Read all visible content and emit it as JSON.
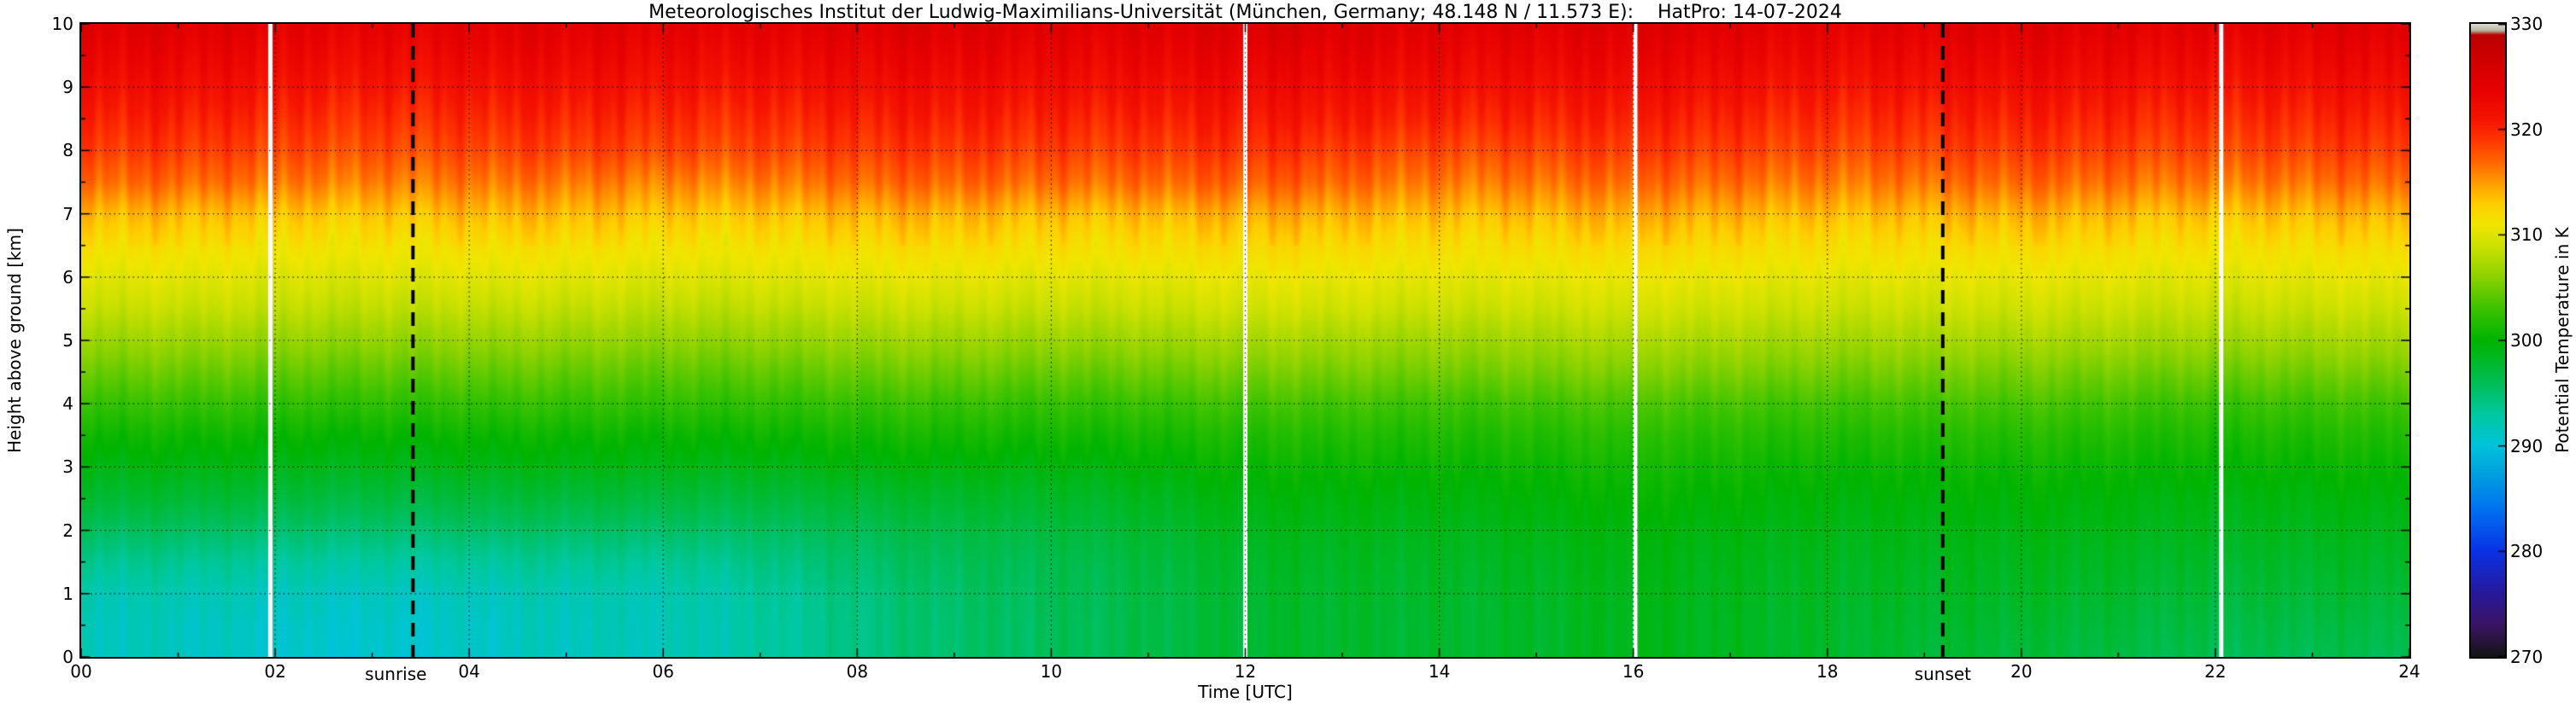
{
  "chart_data": {
    "type": "heatmap",
    "title": "Meteorologisches Institut der Ludwig-Maximilians-Universität (München, Germany; 48.148 N / 11.573 E):    HatPro: 14-07-2024",
    "xlabel": "Time [UTC]",
    "ylabel": "Height above ground [km]",
    "colorbar_label": "Potential Temperature in K",
    "xlim": [
      0,
      24
    ],
    "ylim": [
      0,
      10
    ],
    "grid": true,
    "x_tick_values": [
      0,
      2,
      4,
      6,
      8,
      10,
      12,
      14,
      16,
      18,
      20,
      22,
      24
    ],
    "x_tick_labels": [
      "00",
      "02",
      "04",
      "06",
      "08",
      "10",
      "12",
      "14",
      "16",
      "18",
      "20",
      "22",
      "24"
    ],
    "y_tick_values": [
      0,
      1,
      2,
      3,
      4,
      5,
      6,
      7,
      8,
      9,
      10
    ],
    "y_tick_labels": [
      "0",
      "1",
      "2",
      "3",
      "4",
      "5",
      "6",
      "7",
      "8",
      "9",
      "10"
    ],
    "colorbar": {
      "min": 270,
      "max": 330,
      "tick_values": [
        270,
        280,
        290,
        300,
        310,
        320,
        330
      ],
      "tick_labels": [
        "270",
        "280",
        "290",
        "300",
        "310",
        "320",
        "330"
      ]
    },
    "times_utc": [
      0,
      2,
      4,
      6,
      8,
      10,
      12,
      14,
      16,
      18,
      20,
      22,
      24
    ],
    "heights_km": [
      0,
      0.5,
      1,
      1.5,
      2,
      2.5,
      3,
      3.5,
      4,
      4.5,
      5,
      5.5,
      6,
      6.5,
      7,
      7.5,
      8,
      8.5,
      9,
      9.5,
      10
    ],
    "theta_K": [
      [
        291.5,
        291.5,
        292.0,
        293.5,
        295.5,
        297.5,
        299.0,
        300.5,
        302.5,
        304.5,
        306.5,
        308.5,
        310.0,
        311.5,
        313.5,
        316.5,
        318.5,
        320.0,
        321.5,
        323.0,
        324.5
      ],
      [
        291.0,
        291.2,
        291.8,
        293.2,
        295.2,
        297.2,
        299.0,
        300.5,
        302.5,
        304.5,
        306.5,
        308.5,
        310.0,
        311.5,
        313.5,
        316.5,
        318.5,
        320.0,
        321.5,
        323.0,
        324.5
      ],
      [
        290.8,
        291.0,
        291.5,
        293.0,
        295.0,
        297.0,
        298.8,
        300.3,
        302.3,
        304.3,
        306.3,
        308.3,
        310.0,
        311.5,
        313.5,
        316.0,
        318.0,
        319.5,
        321.0,
        322.5,
        324.0
      ],
      [
        292.0,
        292.0,
        292.3,
        293.5,
        295.3,
        297.2,
        299.0,
        300.5,
        302.5,
        304.3,
        306.3,
        308.3,
        310.0,
        311.5,
        313.5,
        316.0,
        318.5,
        320.0,
        321.5,
        323.0,
        324.5
      ],
      [
        294.0,
        294.0,
        294.2,
        295.0,
        296.0,
        297.5,
        299.2,
        300.7,
        302.5,
        304.5,
        306.5,
        308.5,
        310.2,
        311.7,
        313.7,
        316.5,
        318.5,
        320.0,
        321.5,
        323.0,
        324.5
      ],
      [
        296.0,
        296.0,
        296.2,
        296.5,
        297.2,
        298.2,
        299.5,
        301.0,
        302.7,
        304.7,
        306.7,
        308.7,
        310.3,
        312.0,
        314.0,
        317.0,
        319.0,
        320.5,
        322.0,
        323.5,
        325.0
      ],
      [
        297.5,
        297.5,
        297.6,
        298.0,
        298.5,
        299.2,
        300.2,
        301.3,
        303.0,
        305.0,
        307.0,
        309.0,
        310.5,
        312.0,
        314.0,
        317.0,
        319.0,
        320.5,
        322.0,
        323.5,
        325.0
      ],
      [
        298.0,
        298.0,
        298.2,
        298.5,
        299.0,
        299.6,
        300.6,
        301.7,
        303.2,
        305.2,
        307.0,
        309.0,
        310.5,
        312.0,
        314.0,
        316.5,
        318.5,
        320.5,
        322.0,
        323.5,
        325.0
      ],
      [
        298.5,
        298.5,
        298.6,
        298.9,
        299.3,
        300.0,
        300.8,
        301.8,
        303.3,
        305.3,
        307.2,
        309.0,
        310.5,
        312.0,
        314.0,
        316.5,
        318.5,
        320.0,
        321.5,
        323.0,
        324.5
      ],
      [
        298.2,
        298.3,
        298.5,
        298.8,
        299.2,
        299.8,
        300.7,
        301.8,
        303.3,
        305.3,
        307.2,
        309.0,
        310.5,
        312.0,
        314.0,
        316.5,
        318.5,
        320.0,
        321.5,
        323.0,
        324.5
      ],
      [
        297.0,
        297.5,
        298.0,
        298.5,
        299.0,
        299.6,
        300.5,
        301.6,
        303.2,
        305.0,
        307.0,
        308.8,
        310.3,
        311.8,
        313.8,
        316.5,
        318.5,
        320.0,
        321.5,
        323.0,
        324.5
      ],
      [
        296.5,
        297.0,
        297.6,
        298.2,
        298.8,
        299.4,
        300.4,
        301.5,
        303.0,
        305.0,
        307.0,
        308.8,
        310.3,
        311.8,
        313.8,
        316.5,
        318.5,
        320.0,
        321.5,
        323.0,
        324.5
      ],
      [
        296.0,
        296.6,
        297.3,
        298.0,
        298.6,
        299.3,
        300.3,
        301.4,
        303.0,
        305.0,
        307.0,
        308.8,
        310.3,
        311.8,
        313.8,
        316.5,
        318.5,
        320.0,
        321.5,
        323.0,
        324.5
      ]
    ],
    "colormap_stops": [
      [
        270,
        "#141414"
      ],
      [
        273,
        "#3c1464"
      ],
      [
        276,
        "#28199b"
      ],
      [
        280,
        "#0a32e6"
      ],
      [
        284,
        "#0073f0"
      ],
      [
        288,
        "#00aadc"
      ],
      [
        290,
        "#00c3dc"
      ],
      [
        293,
        "#00c8a0"
      ],
      [
        296,
        "#00be55"
      ],
      [
        300,
        "#00b400"
      ],
      [
        303,
        "#3cc300"
      ],
      [
        306,
        "#8cd200"
      ],
      [
        309,
        "#cde100"
      ],
      [
        311,
        "#f0e600"
      ],
      [
        313,
        "#ffcd00"
      ],
      [
        315,
        "#ff9b00"
      ],
      [
        317,
        "#ff6400"
      ],
      [
        319,
        "#ff3700"
      ],
      [
        321,
        "#f51400"
      ],
      [
        324,
        "#e60000"
      ],
      [
        327,
        "#cd0000"
      ],
      [
        329,
        "#b90000"
      ],
      [
        329.4,
        "#b4b4a0"
      ],
      [
        330,
        "#dcdccd"
      ]
    ],
    "data_gap_times_utc": [
      1.95,
      12.0,
      16.02,
      22.06
    ],
    "annotations": [
      {
        "label": "sunrise",
        "time_utc": 3.42,
        "line_style": "dashed-black"
      },
      {
        "label": "sunset",
        "time_utc": 19.19,
        "line_style": "dashed-black"
      }
    ]
  }
}
